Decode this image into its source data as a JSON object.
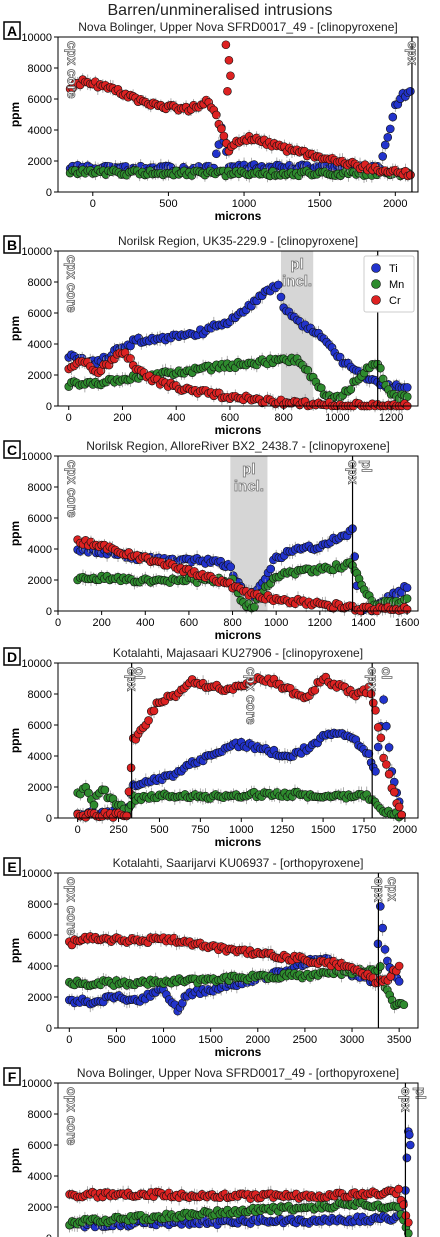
{
  "figure_title": "Barren/unmineralised intrusions",
  "colors": {
    "Ti": "#2233cc",
    "Mn": "#2e8b2e",
    "Cr": "#dd2222",
    "shade": "#cfcfcf",
    "axis": "#000000",
    "error": "#9a9a9a"
  },
  "legend": {
    "position": "top-right",
    "entries": [
      "Ti",
      "Mn",
      "Cr"
    ]
  },
  "chart_data": [
    {
      "type": "scatter",
      "panel": "A",
      "title": "Nova Bolinger, Upper Nova SFRD0017_49 - [clinopyroxene]",
      "xlabel": "microns",
      "ylabel": "ppm",
      "xlim": [
        -230,
        2150
      ],
      "ylim": [
        0,
        10000
      ],
      "xticks": [
        0,
        500,
        1000,
        1500,
        2000
      ],
      "yticks": [
        0,
        2000,
        4000,
        6000,
        8000,
        10000
      ],
      "annotations": [
        {
          "text": "cpx core",
          "x": -200,
          "kind": "label"
        },
        {
          "text": "cpx",
          "x": 2110,
          "kind": "boundary"
        }
      ],
      "series": [
        {
          "name": "Ti",
          "x": [
            -150,
            0,
            200,
            400,
            600,
            800,
            850,
            900,
            1000,
            1200,
            1400,
            1600,
            1800,
            1900,
            1950,
            2000,
            2050,
            2100
          ],
          "values": [
            1600,
            1500,
            1500,
            1500,
            1500,
            1500,
            4000,
            1700,
            1600,
            1600,
            1600,
            1600,
            1600,
            1600,
            3500,
            5500,
            6200,
            6500
          ]
        },
        {
          "name": "Mn",
          "x": [
            -150,
            0,
            500,
            1000,
            1500,
            2000,
            2100
          ],
          "values": [
            1300,
            1300,
            1200,
            1200,
            1200,
            1200,
            1100
          ]
        },
        {
          "name": "Cr",
          "x": [
            -150,
            -50,
            0,
            100,
            200,
            300,
            400,
            500,
            600,
            700,
            750,
            800,
            850,
            900,
            950,
            1000,
            1100,
            1200,
            1300,
            1400,
            1500,
            1600,
            1700,
            1800,
            1900,
            2000,
            2100
          ],
          "values": [
            6800,
            7200,
            7000,
            6800,
            6300,
            6000,
            5700,
            5500,
            5300,
            5500,
            6000,
            5400,
            4000,
            2500,
            3300,
            3500,
            3300,
            3000,
            2700,
            2500,
            2200,
            2000,
            1800,
            1600,
            1400,
            1300,
            1100
          ]
        }
      ],
      "outliers": [
        {
          "name": "Cr",
          "x": [
            880,
            900,
            910,
            890
          ],
          "values": [
            9500,
            8500,
            7500,
            6500
          ]
        }
      ]
    },
    {
      "type": "scatter",
      "panel": "B",
      "title": "Norilsk Region, UK35-229.9 - [clinopyroxene]",
      "xlabel": "microns",
      "ylabel": "ppm",
      "xlim": [
        -40,
        1300
      ],
      "ylim": [
        0,
        10000
      ],
      "xticks": [
        0,
        200,
        400,
        600,
        800,
        1000,
        1200
      ],
      "yticks": [
        0,
        2000,
        4000,
        6000,
        8000,
        10000
      ],
      "shaded": [
        {
          "from": 790,
          "to": 910,
          "label": "pl incl."
        }
      ],
      "annotations": [
        {
          "text": "cpx core",
          "x": -25,
          "kind": "label"
        },
        {
          "text": "cpx",
          "x": 1150,
          "kind": "boundary"
        }
      ],
      "series": [
        {
          "name": "Ti",
          "x": [
            0,
            50,
            100,
            150,
            200,
            250,
            300,
            400,
            500,
            600,
            700,
            750,
            780,
            800,
            850,
            900,
            950,
            1000,
            1050,
            1100,
            1150,
            1200,
            1260
          ],
          "values": [
            3200,
            3000,
            2800,
            3200,
            3800,
            4200,
            4300,
            4500,
            4800,
            5500,
            6800,
            7500,
            7800,
            6500,
            5500,
            5000,
            4500,
            3200,
            2500,
            2000,
            1500,
            1300,
            1200
          ]
        },
        {
          "name": "Mn",
          "x": [
            0,
            100,
            200,
            300,
            400,
            500,
            600,
            700,
            800,
            850,
            900,
            950,
            1000,
            1050,
            1100,
            1150,
            1200,
            1260
          ],
          "values": [
            1400,
            1500,
            1700,
            2000,
            2200,
            2400,
            2600,
            2800,
            3000,
            3000,
            2000,
            800,
            500,
            1200,
            2200,
            2800,
            600,
            600
          ]
        },
        {
          "name": "Cr",
          "x": [
            0,
            50,
            100,
            150,
            200,
            250,
            300,
            400,
            500,
            600,
            700,
            800,
            900,
            1000,
            1100,
            1200,
            1260
          ],
          "values": [
            2500,
            3000,
            2200,
            2700,
            3500,
            2500,
            1800,
            1200,
            900,
            600,
            400,
            250,
            100,
            50,
            50,
            0,
            0
          ]
        }
      ]
    },
    {
      "type": "scatter",
      "panel": "C",
      "title": "Norilsk Region, AlloreRiver BX2_2438.7 - [clinopyroxene]",
      "xlabel": "microns",
      "ylabel": "ppm",
      "xlim": [
        0,
        1650
      ],
      "ylim": [
        0,
        10000
      ],
      "xticks": [
        0,
        200,
        400,
        600,
        800,
        1000,
        1200,
        1400,
        1600
      ],
      "yticks": [
        0,
        2000,
        4000,
        6000,
        8000,
        10000
      ],
      "shaded": [
        {
          "from": 790,
          "to": 960,
          "label": "pl incl."
        }
      ],
      "annotations": [
        {
          "text": "cpx core",
          "x": 20,
          "kind": "label"
        },
        {
          "text": "cpx",
          "x": 1350,
          "kind": "boundary"
        },
        {
          "text": "pl",
          "x": 1370,
          "kind": "label"
        }
      ],
      "series": [
        {
          "name": "Ti",
          "x": [
            90,
            200,
            300,
            400,
            500,
            600,
            700,
            780,
            850,
            900,
            950,
            1000,
            1100,
            1200,
            1300,
            1350,
            1380,
            1450,
            1550,
            1600
          ],
          "values": [
            4000,
            3800,
            3600,
            3400,
            3300,
            3300,
            3200,
            3000,
            1200,
            1000,
            2000,
            3500,
            3900,
            4200,
            4800,
            5200,
            100,
            100,
            1200,
            1500
          ]
        },
        {
          "name": "Mn",
          "x": [
            90,
            200,
            300,
            400,
            500,
            600,
            700,
            800,
            850,
            900,
            950,
            1000,
            1100,
            1200,
            1300,
            1350,
            1380,
            1450,
            1550,
            1600
          ],
          "values": [
            2000,
            2200,
            2000,
            2000,
            2000,
            2000,
            2000,
            1900,
            500,
            300,
            1500,
            2300,
            2500,
            2700,
            2900,
            3000,
            2000,
            500,
            600,
            800
          ]
        },
        {
          "name": "Cr",
          "x": [
            90,
            200,
            300,
            400,
            500,
            600,
            700,
            800,
            900,
            1000,
            1100,
            1200,
            1300,
            1350,
            1400,
            1500,
            1600
          ],
          "values": [
            4500,
            4200,
            3800,
            3400,
            3000,
            2600,
            2200,
            1600,
            1000,
            800,
            600,
            400,
            300,
            200,
            100,
            100,
            100
          ]
        }
      ]
    },
    {
      "type": "scatter",
      "panel": "D",
      "title": "Kotalahti, Majasaari KU27906 - [clinopyroxene]",
      "xlabel": "microns",
      "ylabel": "ppm",
      "xlim": [
        -120,
        2080
      ],
      "ylim": [
        0,
        10000
      ],
      "xticks": [
        0,
        250,
        500,
        750,
        1000,
        1250,
        1500,
        1750,
        2000
      ],
      "yticks": [
        0,
        2000,
        4000,
        6000,
        8000,
        10000
      ],
      "annotations": [
        {
          "text": "ol",
          "x": 320,
          "kind": "label"
        },
        {
          "text": "cpx",
          "x": 330,
          "kind": "boundary"
        },
        {
          "text": "cpx core",
          "x": 1000,
          "kind": "label"
        },
        {
          "text": "cpx",
          "x": 1800,
          "kind": "boundary"
        },
        {
          "text": "ol",
          "x": 1830,
          "kind": "label"
        }
      ],
      "series": [
        {
          "name": "Ti",
          "x": [
            0,
            100,
            200,
            300,
            340,
            400,
            500,
            600,
            700,
            800,
            900,
            1000,
            1100,
            1200,
            1300,
            1400,
            1500,
            1600,
            1700,
            1780,
            1820,
            1870,
            1920,
            1980
          ],
          "values": [
            300,
            300,
            300,
            300,
            2000,
            2200,
            2500,
            2800,
            3500,
            4000,
            4500,
            4800,
            4500,
            4200,
            4000,
            4500,
            5200,
            5500,
            5000,
            4000,
            3000,
            7500,
            3000,
            200
          ]
        },
        {
          "name": "Mn",
          "x": [
            0,
            50,
            100,
            150,
            200,
            250,
            300,
            340,
            500,
            750,
            1000,
            1250,
            1500,
            1750,
            1800,
            1850,
            1900,
            1980
          ],
          "values": [
            1500,
            2000,
            1000,
            2000,
            1200,
            900,
            300,
            1300,
            1400,
            1400,
            1500,
            1500,
            1500,
            1400,
            1300,
            500,
            300,
            200
          ]
        },
        {
          "name": "Cr",
          "x": [
            0,
            100,
            200,
            300,
            340,
            400,
            450,
            500,
            600,
            700,
            800,
            900,
            1000,
            1100,
            1200,
            1300,
            1400,
            1500,
            1600,
            1700,
            1780,
            1820,
            1870,
            1920,
            1980
          ],
          "values": [
            200,
            200,
            200,
            200,
            5000,
            5800,
            6800,
            7500,
            8000,
            8800,
            8500,
            8300,
            8500,
            9000,
            8800,
            8200,
            7800,
            9000,
            8500,
            8000,
            8300,
            7000,
            4000,
            2000,
            200
          ]
        }
      ]
    },
    {
      "type": "scatter",
      "panel": "E",
      "title": "Kotalahti, Saarijarvi KU06937 - [orthopyroxene]",
      "xlabel": "microns",
      "ylabel": "ppm",
      "xlim": [
        -120,
        3700
      ],
      "ylim": [
        0,
        10000
      ],
      "xticks": [
        0,
        500,
        1000,
        1500,
        2000,
        2500,
        3000,
        3500
      ],
      "yticks": [
        0,
        2000,
        4000,
        6000,
        8000,
        10000
      ],
      "annotations": [
        {
          "text": "opx core",
          "x": -80,
          "kind": "label"
        },
        {
          "text": "opx",
          "x": 3280,
          "kind": "boundary"
        },
        {
          "text": "cpx",
          "x": 3330,
          "kind": "label"
        }
      ],
      "series": [
        {
          "name": "Ti",
          "x": [
            0,
            250,
            500,
            750,
            1000,
            1150,
            1250,
            1500,
            1750,
            2000,
            2250,
            2500,
            2750,
            3000,
            3250,
            3300,
            3350,
            3400,
            3500
          ],
          "values": [
            1800,
            1700,
            2000,
            1800,
            2500,
            1200,
            2200,
            2500,
            2800,
            3200,
            3600,
            4200,
            4500,
            3500,
            3000,
            8000,
            5000,
            3800,
            3000
          ]
        },
        {
          "name": "Mn",
          "x": [
            0,
            500,
            1000,
            1500,
            2000,
            2500,
            3000,
            3300,
            3350,
            3450,
            3550
          ],
          "values": [
            2900,
            2900,
            3000,
            3100,
            3300,
            3400,
            3600,
            3800,
            2500,
            1600,
            1500
          ]
        },
        {
          "name": "Cr",
          "x": [
            0,
            250,
            500,
            750,
            1000,
            1250,
            1500,
            1750,
            2000,
            2250,
            2500,
            2750,
            3000,
            3250,
            3350,
            3500
          ],
          "values": [
            5500,
            5800,
            5700,
            5600,
            5800,
            5500,
            5200,
            5000,
            4800,
            4600,
            4400,
            4200,
            4000,
            3000,
            3000,
            4000
          ]
        }
      ]
    },
    {
      "type": "scatter",
      "panel": "F",
      "title": "Nova Bolinger, Upper Nova SFRD0017_49 - [orthopyroxene]",
      "xlabel": "microns",
      "ylabel": "ppm",
      "xlim": [
        -120,
        3600
      ],
      "ylim": [
        0,
        10000
      ],
      "xticks": [
        0,
        500,
        1000,
        1500,
        2000,
        2500,
        3000,
        3500
      ],
      "yticks": [
        0,
        2000,
        4000,
        6000,
        8000,
        10000
      ],
      "annotations": [
        {
          "text": "opx core",
          "x": -80,
          "kind": "label"
        },
        {
          "text": "opx",
          "x": 3470,
          "kind": "boundary"
        },
        {
          "text": "pl",
          "x": 3530,
          "kind": "label"
        }
      ],
      "series": [
        {
          "name": "Ti",
          "x": [
            0,
            500,
            1000,
            1500,
            2000,
            2500,
            3000,
            3400,
            3470,
            3500,
            3520
          ],
          "values": [
            800,
            900,
            1000,
            1000,
            1100,
            1100,
            1200,
            1300,
            3000,
            7000,
            6000
          ]
        },
        {
          "name": "Mn",
          "x": [
            0,
            500,
            1000,
            1500,
            2000,
            2500,
            3000,
            3400,
            3500
          ],
          "values": [
            1000,
            1200,
            1400,
            1600,
            1800,
            2000,
            2200,
            2000,
            300
          ]
        },
        {
          "name": "Cr",
          "x": [
            0,
            500,
            1000,
            1500,
            2000,
            2500,
            3000,
            3400,
            3500
          ],
          "values": [
            2800,
            2800,
            2800,
            2700,
            2700,
            2700,
            2800,
            3000,
            1000
          ]
        }
      ]
    }
  ]
}
